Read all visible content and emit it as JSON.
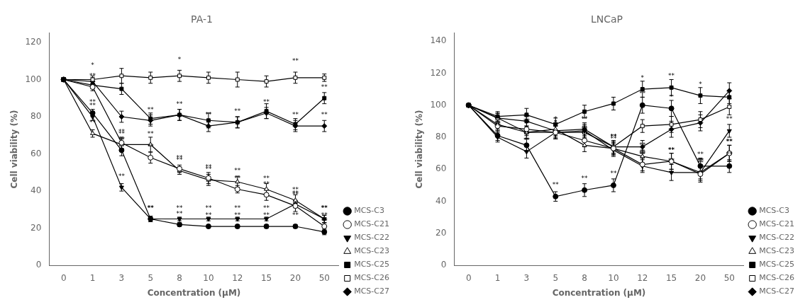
{
  "chart_data": [
    {
      "type": "line",
      "title": "PA-1",
      "x_label": "Concentration (μM)",
      "y_label": "Cell viability (%)",
      "categories": [
        0,
        1,
        3,
        5,
        8,
        10,
        12,
        15,
        20,
        50
      ],
      "ylim": [
        0,
        125
      ],
      "yticks": [
        0,
        20,
        40,
        60,
        80,
        100,
        120
      ],
      "grid": false,
      "legend": "lower right",
      "series": [
        {
          "name": "MCS-C3",
          "color": "black",
          "marker": "circle",
          "values": [
            100,
            82,
            62,
            25,
            22,
            21,
            21,
            21,
            21,
            18
          ],
          "errors": [
            1,
            2,
            3,
            1.5,
            1,
            1,
            1,
            1,
            1,
            1.5
          ]
        },
        {
          "name": "MCS-C21",
          "color": "black",
          "marker": "circle-open",
          "values": [
            100,
            96,
            66,
            58,
            52,
            47,
            41,
            38,
            32,
            21
          ],
          "errors": [
            1,
            2,
            3,
            3,
            2,
            3,
            2,
            3,
            3,
            2
          ]
        },
        {
          "name": "MCS-C22",
          "color": "black",
          "marker": "triangle-down",
          "values": [
            100,
            80,
            42,
            25,
            25,
            25,
            25,
            25,
            33,
            25
          ],
          "errors": [
            1,
            2,
            2,
            1.5,
            1,
            1,
            1,
            1,
            2,
            2
          ]
        },
        {
          "name": "MCS-C23",
          "color": "black",
          "marker": "triangle-up-open",
          "values": [
            100,
            71,
            65,
            65,
            51,
            46,
            45,
            41,
            35,
            25
          ],
          "errors": [
            1,
            2,
            3,
            4,
            2,
            3,
            3,
            3,
            3,
            2
          ]
        },
        {
          "name": "MCS-C25",
          "color": "black",
          "marker": "square",
          "values": [
            100,
            97,
            95,
            79,
            81,
            78,
            77,
            83,
            76,
            90
          ],
          "errors": [
            1,
            2,
            3,
            3,
            3,
            4,
            3,
            4,
            3,
            3
          ]
        },
        {
          "name": "MCS-C26",
          "color": "black",
          "marker": "square-open",
          "values": [
            100,
            100,
            102,
            101,
            102,
            101,
            100,
            99,
            101,
            101
          ],
          "errors": [
            1,
            2,
            4,
            3,
            3,
            3,
            4,
            3,
            3,
            2
          ]
        },
        {
          "name": "MCS-C27",
          "color": "black",
          "marker": "diamond",
          "values": [
            100,
            99,
            80,
            78,
            81,
            75,
            77,
            82,
            75,
            75
          ],
          "errors": [
            1,
            2,
            3,
            3,
            3,
            3,
            3,
            3,
            3,
            3
          ]
        }
      ],
      "annotations": [
        {
          "x": 1,
          "y": 106,
          "text": "*"
        },
        {
          "x": 8,
          "y": 109,
          "text": "*"
        },
        {
          "x": 20,
          "y": 108,
          "text": "**"
        },
        {
          "x": 1,
          "y": 86,
          "text": "**"
        },
        {
          "x": 1,
          "y": 100,
          "text": "**"
        },
        {
          "x": 1,
          "y": 84,
          "text": "**"
        },
        {
          "x": 1,
          "y": 75,
          "text": "**"
        },
        {
          "x": 3,
          "y": 66,
          "text": "**"
        },
        {
          "x": 3,
          "y": 70,
          "text": "**"
        },
        {
          "x": 3,
          "y": 46,
          "text": "**"
        },
        {
          "x": 3,
          "y": 69,
          "text": "**"
        },
        {
          "x": 5,
          "y": 29,
          "text": "**"
        },
        {
          "x": 5,
          "y": 62,
          "text": "**"
        },
        {
          "x": 5,
          "y": 29,
          "text": "**"
        },
        {
          "x": 5,
          "y": 69,
          "text": "**"
        },
        {
          "x": 5,
          "y": 82,
          "text": "**"
        },
        {
          "x": 8,
          "y": 26,
          "text": "**"
        },
        {
          "x": 8,
          "y": 56,
          "text": "**"
        },
        {
          "x": 8,
          "y": 29,
          "text": "**"
        },
        {
          "x": 8,
          "y": 55,
          "text": "**"
        },
        {
          "x": 8,
          "y": 85,
          "text": "**"
        },
        {
          "x": 10,
          "y": 25,
          "text": "**"
        },
        {
          "x": 10,
          "y": 51,
          "text": "**"
        },
        {
          "x": 10,
          "y": 29,
          "text": "**"
        },
        {
          "x": 10,
          "y": 50,
          "text": "**"
        },
        {
          "x": 10,
          "y": 79,
          "text": "**"
        },
        {
          "x": 12,
          "y": 25,
          "text": "**"
        },
        {
          "x": 12,
          "y": 45,
          "text": "**"
        },
        {
          "x": 12,
          "y": 29,
          "text": "**"
        },
        {
          "x": 12,
          "y": 49,
          "text": "**"
        },
        {
          "x": 12,
          "y": 81,
          "text": "**"
        },
        {
          "x": 15,
          "y": 25,
          "text": "**"
        },
        {
          "x": 15,
          "y": 42,
          "text": "**"
        },
        {
          "x": 15,
          "y": 29,
          "text": "**"
        },
        {
          "x": 15,
          "y": 45,
          "text": "**"
        },
        {
          "x": 15,
          "y": 86,
          "text": "**"
        },
        {
          "x": 20,
          "y": 25,
          "text": "**"
        },
        {
          "x": 20,
          "y": 36,
          "text": "**"
        },
        {
          "x": 20,
          "y": 37,
          "text": "**"
        },
        {
          "x": 20,
          "y": 39,
          "text": "**"
        },
        {
          "x": 20,
          "y": 79,
          "text": "**"
        },
        {
          "x": 50,
          "y": 22,
          "text": "**"
        },
        {
          "x": 50,
          "y": 25,
          "text": "**"
        },
        {
          "x": 50,
          "y": 29,
          "text": "**"
        },
        {
          "x": 50,
          "y": 29,
          "text": "**"
        },
        {
          "x": 50,
          "y": 94,
          "text": "**"
        },
        {
          "x": 50,
          "y": 79,
          "text": "**"
        }
      ]
    },
    {
      "type": "line",
      "title": "LNCaP",
      "x_label": "Concentration (μM)",
      "y_label": "Cell viability (%)",
      "categories": [
        0,
        1,
        3,
        5,
        8,
        10,
        12,
        15,
        20,
        50
      ],
      "ylim": [
        0,
        145
      ],
      "yticks": [
        0,
        20,
        40,
        60,
        80,
        100,
        120,
        140
      ],
      "grid": false,
      "legend": "lower right",
      "series": [
        {
          "name": "MCS-C3",
          "color": "black",
          "marker": "circle",
          "values": [
            100,
            81,
            75,
            43,
            47,
            50,
            100,
            98,
            62,
            62
          ],
          "errors": [
            1,
            3,
            4,
            3,
            4,
            4,
            5,
            5,
            5,
            4
          ]
        },
        {
          "name": "MCS-C21",
          "color": "black",
          "marker": "circle-open",
          "values": [
            100,
            87,
            85,
            83,
            78,
            73,
            63,
            65,
            57,
            70
          ],
          "errors": [
            1,
            3,
            4,
            4,
            4,
            4,
            4,
            5,
            5,
            5
          ]
        },
        {
          "name": "MCS-C22",
          "color": "black",
          "marker": "triangle-down",
          "values": [
            100,
            80,
            71,
            83,
            84,
            72,
            62,
            58,
            58,
            84
          ],
          "errors": [
            1,
            3,
            4,
            4,
            4,
            4,
            4,
            5,
            4,
            4
          ]
        },
        {
          "name": "MCS-C23",
          "color": "black",
          "marker": "triangle-up-open",
          "values": [
            100,
            88,
            83,
            85,
            75,
            73,
            68,
            65,
            58,
            70
          ],
          "errors": [
            1,
            3,
            4,
            4,
            4,
            4,
            4,
            5,
            5,
            5
          ]
        },
        {
          "name": "MCS-C25",
          "color": "black",
          "marker": "square",
          "values": [
            100,
            93,
            94,
            88,
            96,
            101,
            110,
            111,
            106,
            105
          ],
          "errors": [
            1,
            3,
            4,
            4,
            4,
            4,
            5,
            5,
            5,
            4
          ]
        },
        {
          "name": "MCS-C26",
          "color": "black",
          "marker": "square-open",
          "values": [
            100,
            92,
            83,
            83,
            83,
            74,
            87,
            88,
            91,
            99
          ],
          "errors": [
            1,
            3,
            4,
            4,
            4,
            4,
            4,
            5,
            5,
            5
          ]
        },
        {
          "name": "MCS-C27",
          "color": "black",
          "marker": "diamond",
          "values": [
            100,
            92,
            90,
            84,
            85,
            74,
            74,
            85,
            89,
            109
          ],
          "errors": [
            1,
            3,
            4,
            4,
            4,
            4,
            4,
            5,
            5,
            5
          ]
        }
      ],
      "annotations": [
        {
          "x": 1,
          "y": 86,
          "text": "**"
        },
        {
          "x": 1,
          "y": 85,
          "text": "**"
        },
        {
          "x": 3,
          "y": 80,
          "text": "**"
        },
        {
          "x": 3,
          "y": 90,
          "text": "**"
        },
        {
          "x": 3,
          "y": 76,
          "text": "**"
        },
        {
          "x": 3,
          "y": 88,
          "text": "**"
        },
        {
          "x": 5,
          "y": 48,
          "text": "**"
        },
        {
          "x": 5,
          "y": 87,
          "text": "*"
        },
        {
          "x": 5,
          "y": 87,
          "text": "*"
        },
        {
          "x": 5,
          "y": 89,
          "text": "*"
        },
        {
          "x": 8,
          "y": 52,
          "text": "**"
        },
        {
          "x": 8,
          "y": 83,
          "text": "**"
        },
        {
          "x": 8,
          "y": 89,
          "text": "**"
        },
        {
          "x": 8,
          "y": 80,
          "text": "**"
        },
        {
          "x": 10,
          "y": 55,
          "text": "**"
        },
        {
          "x": 10,
          "y": 78,
          "text": "**"
        },
        {
          "x": 10,
          "y": 77,
          "text": "**"
        },
        {
          "x": 10,
          "y": 78,
          "text": "**"
        },
        {
          "x": 12,
          "y": 115,
          "text": "*"
        },
        {
          "x": 12,
          "y": 105,
          "text": "**"
        },
        {
          "x": 12,
          "y": 68,
          "text": "**"
        },
        {
          "x": 12,
          "y": 67,
          "text": "**"
        },
        {
          "x": 12,
          "y": 73,
          "text": "**"
        },
        {
          "x": 15,
          "y": 116,
          "text": "**"
        },
        {
          "x": 15,
          "y": 103,
          "text": "*"
        },
        {
          "x": 15,
          "y": 70,
          "text": "**"
        },
        {
          "x": 15,
          "y": 63,
          "text": "**"
        },
        {
          "x": 15,
          "y": 70,
          "text": "**"
        },
        {
          "x": 20,
          "y": 111,
          "text": "*"
        },
        {
          "x": 20,
          "y": 67,
          "text": "**"
        },
        {
          "x": 20,
          "y": 62,
          "text": "**"
        },
        {
          "x": 20,
          "y": 63,
          "text": "**"
        },
        {
          "x": 20,
          "y": 63,
          "text": "**"
        },
        {
          "x": 50,
          "y": 67,
          "text": "**"
        },
        {
          "x": 50,
          "y": 75,
          "text": "**"
        },
        {
          "x": 50,
          "y": 89,
          "text": "**"
        },
        {
          "x": 50,
          "y": 75,
          "text": "**"
        }
      ]
    }
  ]
}
